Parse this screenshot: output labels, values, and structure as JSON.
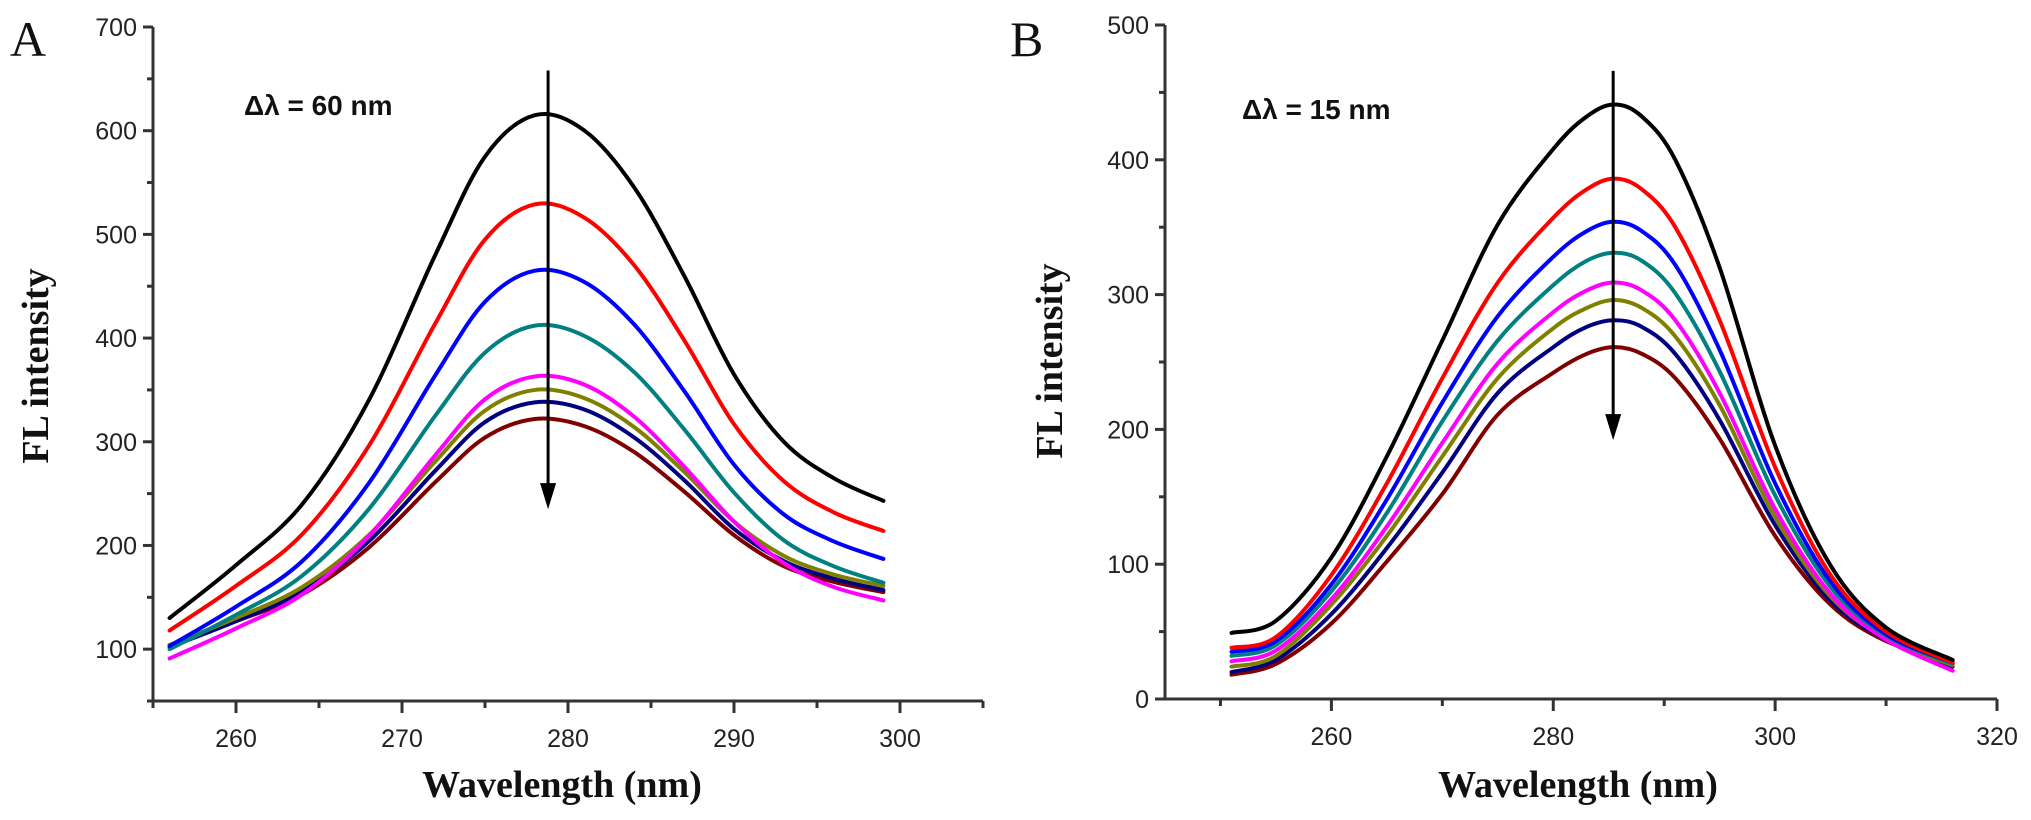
{
  "colors": [
    "#000000",
    "#ff0000",
    "#0000ff",
    "#008080",
    "#ff00ff",
    "#808000",
    "#000080",
    "#800000"
  ],
  "chart_data": [
    {
      "type": "line",
      "panel_label": "A",
      "annotation": "Δλ = 60 nm",
      "arrow": {
        "x": 278.8,
        "y_from": 658,
        "y_to": 235
      },
      "xlabel": "Wavelength (nm)",
      "ylabel": "FL intensity",
      "xlim": [
        255,
        305
      ],
      "ylim": [
        50,
        700
      ],
      "xticks": [
        260,
        270,
        280,
        290,
        300
      ],
      "yticks": [
        100,
        200,
        300,
        400,
        500,
        600,
        700
      ],
      "grid": false,
      "x": [
        256,
        260,
        264,
        268,
        272,
        275,
        278,
        281,
        284,
        287,
        290,
        293,
        296,
        299
      ],
      "series": [
        {
          "values": [
            130,
            181,
            240,
            340,
            480,
            575,
            615,
            600,
            545,
            460,
            365,
            300,
            265,
            243
          ]
        },
        {
          "values": [
            118,
            161,
            211,
            296,
            414,
            495,
            529,
            516,
            470,
            398,
            317,
            262,
            232,
            214
          ]
        },
        {
          "values": [
            103,
            141,
            185,
            260,
            364,
            435,
            465,
            454,
            413,
            349,
            278,
            230,
            204,
            187
          ]
        },
        {
          "values": [
            100,
            133,
            171,
            235,
            325,
            386,
            412,
            402,
            367,
            312,
            251,
            205,
            180,
            164
          ]
        },
        {
          "values": [
            91,
            120,
            153,
            209,
            287,
            341,
            363,
            355,
            324,
            276,
            223,
            183,
            160,
            147
          ]
        },
        {
          "values": [
            104,
            130,
            160,
            210,
            281,
            330,
            350,
            342,
            314,
            271,
            223,
            190,
            172,
            161
          ]
        },
        {
          "values": [
            102,
            127,
            156,
            204,
            272,
            319,
            338,
            331,
            304,
            263,
            216,
            185,
            168,
            157
          ]
        },
        {
          "values": [
            104,
            127,
            153,
            198,
            261,
            304,
            322,
            315,
            290,
            252,
            210,
            180,
            165,
            155
          ]
        }
      ]
    },
    {
      "type": "line",
      "panel_label": "B",
      "annotation": "Δλ = 15 nm",
      "arrow": {
        "x": 285.4,
        "y_from": 466,
        "y_to": 192
      },
      "xlabel": "Wavelength (nm)",
      "ylabel": "FL intensity",
      "xlim": [
        245,
        320
      ],
      "ylim": [
        0,
        500
      ],
      "xticks": [
        260,
        280,
        300,
        320
      ],
      "yticks": [
        0,
        100,
        200,
        300,
        400,
        500
      ],
      "grid": false,
      "x": [
        251,
        255,
        260,
        265,
        270,
        275,
        280,
        283,
        285.5,
        288,
        291,
        295,
        300,
        305,
        310,
        316
      ],
      "series": [
        {
          "values": [
            49,
            58,
            105,
            180,
            266,
            352,
            408,
            432,
            441,
            432,
            400,
            320,
            188,
            99,
            53,
            29
          ]
        },
        {
          "values": [
            38,
            46,
            92,
            160,
            238,
            309,
            357,
            378,
            386,
            378,
            350,
            281,
            172,
            92,
            50,
            27
          ]
        },
        {
          "values": [
            35,
            43,
            85,
            148,
            220,
            284,
            328,
            347,
            354,
            347,
            322,
            259,
            160,
            87,
            48,
            27
          ]
        },
        {
          "values": [
            32,
            40,
            80,
            138,
            206,
            266,
            307,
            325,
            331,
            325,
            301,
            243,
            151,
            83,
            47,
            26
          ]
        },
        {
          "values": [
            28,
            36,
            74,
            128,
            190,
            249,
            287,
            303,
            309,
            303,
            281,
            227,
            141,
            78,
            44,
            21
          ]
        },
        {
          "values": [
            24,
            32,
            70,
            121,
            180,
            238,
            275,
            290,
            296,
            290,
            269,
            218,
            135,
            76,
            45,
            25
          ]
        },
        {
          "values": [
            20,
            29,
            63,
            112,
            168,
            227,
            261,
            276,
            281,
            276,
            256,
            207,
            129,
            73,
            44,
            24
          ]
        },
        {
          "values": [
            18,
            26,
            56,
            102,
            152,
            211,
            242,
            256,
            261,
            256,
            238,
            193,
            121,
            70,
            43,
            28
          ]
        }
      ]
    }
  ]
}
